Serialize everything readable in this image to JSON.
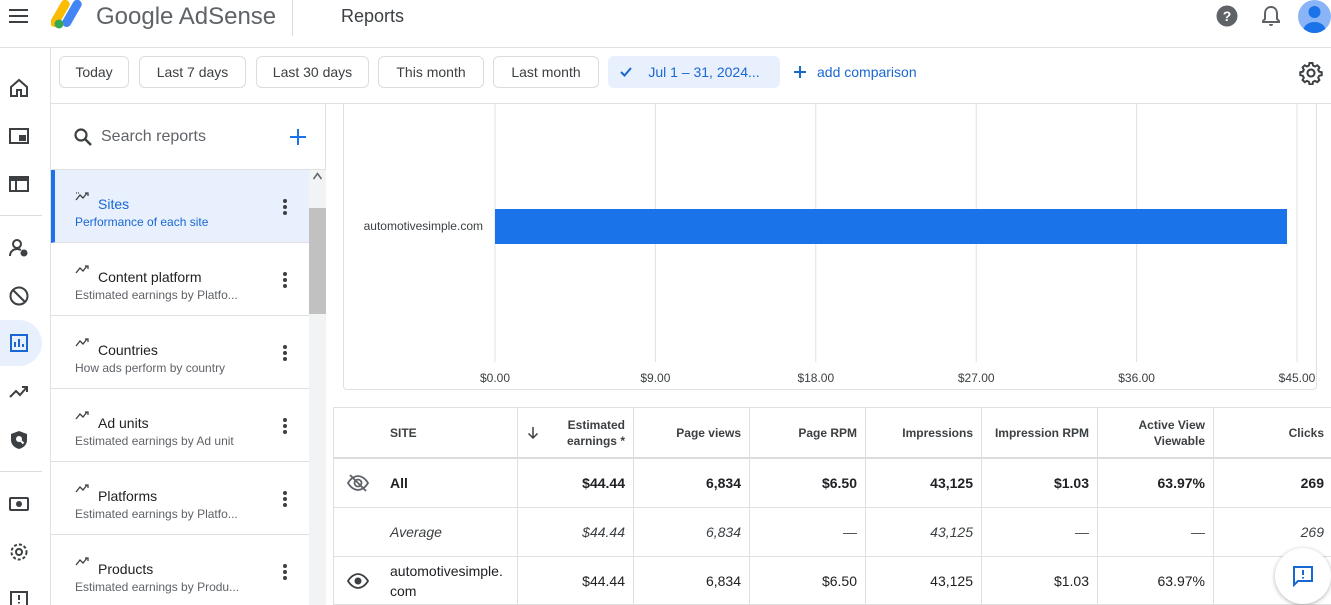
{
  "header": {
    "brand": "Google AdSense",
    "page_title": "Reports"
  },
  "date_filters": {
    "chips": [
      "Today",
      "Last 7 days",
      "Last 30 days",
      "This month",
      "Last month"
    ],
    "selected": "Jul 1 – 31, 2024...",
    "add_comparison": "add comparison"
  },
  "search": {
    "placeholder": "Search reports"
  },
  "reports": [
    {
      "title": "Sites",
      "subtitle": "Performance of each site",
      "active": true
    },
    {
      "title": "Content platform",
      "subtitle": "Estimated earnings by Platfo..."
    },
    {
      "title": "Countries",
      "subtitle": "How ads perform by country"
    },
    {
      "title": "Ad units",
      "subtitle": "Estimated earnings by Ad unit"
    },
    {
      "title": "Platforms",
      "subtitle": "Estimated earnings by Platfo..."
    },
    {
      "title": "Products",
      "subtitle": "Estimated earnings by Produ..."
    }
  ],
  "chart_data": {
    "type": "bar",
    "orientation": "horizontal",
    "categories": [
      "automotivesimple.com"
    ],
    "values": [
      44.44
    ],
    "xlim": [
      0,
      45
    ],
    "x_ticks": [
      "$0.00",
      "$9.00",
      "$18.00",
      "$27.00",
      "$36.00",
      "$45.00"
    ],
    "grid": true,
    "color": "#1a73e8"
  },
  "table": {
    "headers": {
      "site": "SITE",
      "earnings_1": "Estimated",
      "earnings_2": "earnings *",
      "page_views": "Page views",
      "page_rpm": "Page RPM",
      "impressions": "Impressions",
      "impression_rpm": "Impression RPM",
      "active_view_1": "Active View",
      "active_view_2": "Viewable",
      "clicks": "Clicks"
    },
    "rows": {
      "all": {
        "site": "All",
        "earnings": "$44.44",
        "page_views": "6,834",
        "page_rpm": "$6.50",
        "impressions": "43,125",
        "impression_rpm": "$1.03",
        "active_view": "63.97%",
        "clicks": "269"
      },
      "average": {
        "site": "Average",
        "earnings": "$44.44",
        "page_views": "6,834",
        "page_rpm": "—",
        "impressions": "43,125",
        "impression_rpm": "—",
        "active_view": "—",
        "clicks": "269"
      },
      "site": {
        "site_1": "automotivesimple.",
        "site_2": "com",
        "earnings": "$44.44",
        "page_views": "6,834",
        "page_rpm": "$6.50",
        "impressions": "43,125",
        "impression_rpm": "$1.03",
        "active_view": "63.97%"
      }
    }
  }
}
